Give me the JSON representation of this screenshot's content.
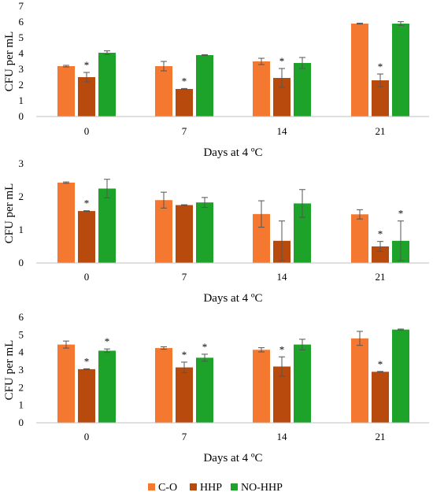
{
  "colors": {
    "C-O": "#F4782F",
    "HHP": "#B84A0E",
    "NO-HHP": "#1EA32A",
    "error_bar": "#555555"
  },
  "legend": [
    {
      "name": "C-O",
      "color": "#F4782F"
    },
    {
      "name": "HHP",
      "color": "#B84A0E"
    },
    {
      "name": "NO-HHP",
      "color": "#1EA32A"
    }
  ],
  "chart_data": [
    {
      "type": "bar",
      "xlabel": "Days at 4 ºC",
      "ylabel": "CFU per mL",
      "ylim": [
        0,
        7
      ],
      "yticks": [
        "0",
        "1",
        "2",
        "3",
        "4",
        "5",
        "6",
        "7"
      ],
      "categories": [
        "0",
        "7",
        "14",
        "21"
      ],
      "series": [
        {
          "name": "C-O",
          "values": [
            3.2,
            3.2,
            3.5,
            5.9
          ],
          "errors": [
            0.05,
            0.3,
            0.2,
            0.03
          ],
          "significant": [
            false,
            false,
            false,
            false
          ]
        },
        {
          "name": "HHP",
          "values": [
            2.5,
            1.75,
            2.45,
            2.3
          ],
          "errors": [
            0.3,
            0.03,
            0.6,
            0.4
          ],
          "significant": [
            true,
            true,
            true,
            true
          ]
        },
        {
          "name": "NO-HHP",
          "values": [
            4.05,
            3.9,
            3.4,
            5.9
          ],
          "errors": [
            0.12,
            0.03,
            0.35,
            0.12
          ],
          "significant": [
            false,
            false,
            false,
            false
          ]
        }
      ],
      "grid": false,
      "legend_position": "bottom"
    },
    {
      "type": "bar",
      "xlabel": "Days at 4 ºC",
      "ylabel": "CFU per mL",
      "ylim": [
        0,
        3
      ],
      "yticks": [
        "0",
        "1",
        "2",
        "3"
      ],
      "categories": [
        "0",
        "7",
        "14",
        "21"
      ],
      "series": [
        {
          "name": "C-O",
          "values": [
            2.43,
            1.9,
            1.48,
            1.47
          ],
          "errors": [
            0.02,
            0.24,
            0.4,
            0.14
          ],
          "significant": [
            false,
            false,
            false,
            false
          ]
        },
        {
          "name": "HHP",
          "values": [
            1.57,
            1.75,
            0.67,
            0.5
          ],
          "errors": [
            0.01,
            0.01,
            0.6,
            0.15
          ],
          "significant": [
            true,
            false,
            false,
            true
          ]
        },
        {
          "name": "NO-HHP",
          "values": [
            2.25,
            1.83,
            1.8,
            0.67
          ],
          "errors": [
            0.28,
            0.15,
            0.42,
            0.6
          ],
          "significant": [
            false,
            false,
            false,
            true
          ]
        }
      ],
      "grid": false,
      "legend_position": "bottom"
    },
    {
      "type": "bar",
      "xlabel": "Days at 4 ºC",
      "ylabel": "CFU per mL",
      "ylim": [
        0,
        6
      ],
      "yticks": [
        "0",
        "1",
        "2",
        "3",
        "4",
        "5",
        "6"
      ],
      "categories": [
        "0",
        "7",
        "14",
        "21"
      ],
      "series": [
        {
          "name": "C-O",
          "values": [
            4.45,
            4.25,
            4.15,
            4.8
          ],
          "errors": [
            0.2,
            0.07,
            0.12,
            0.4
          ],
          "significant": [
            false,
            false,
            false,
            false
          ]
        },
        {
          "name": "HHP",
          "values": [
            3.05,
            3.15,
            3.2,
            2.9
          ],
          "errors": [
            0.02,
            0.3,
            0.55,
            0.02
          ],
          "significant": [
            true,
            true,
            true,
            true
          ]
        },
        {
          "name": "NO-HHP",
          "values": [
            4.1,
            3.7,
            4.45,
            5.3
          ],
          "errors": [
            0.1,
            0.2,
            0.3,
            0.03
          ],
          "significant": [
            true,
            true,
            false,
            false
          ]
        }
      ],
      "grid": false,
      "legend_position": "bottom"
    }
  ]
}
